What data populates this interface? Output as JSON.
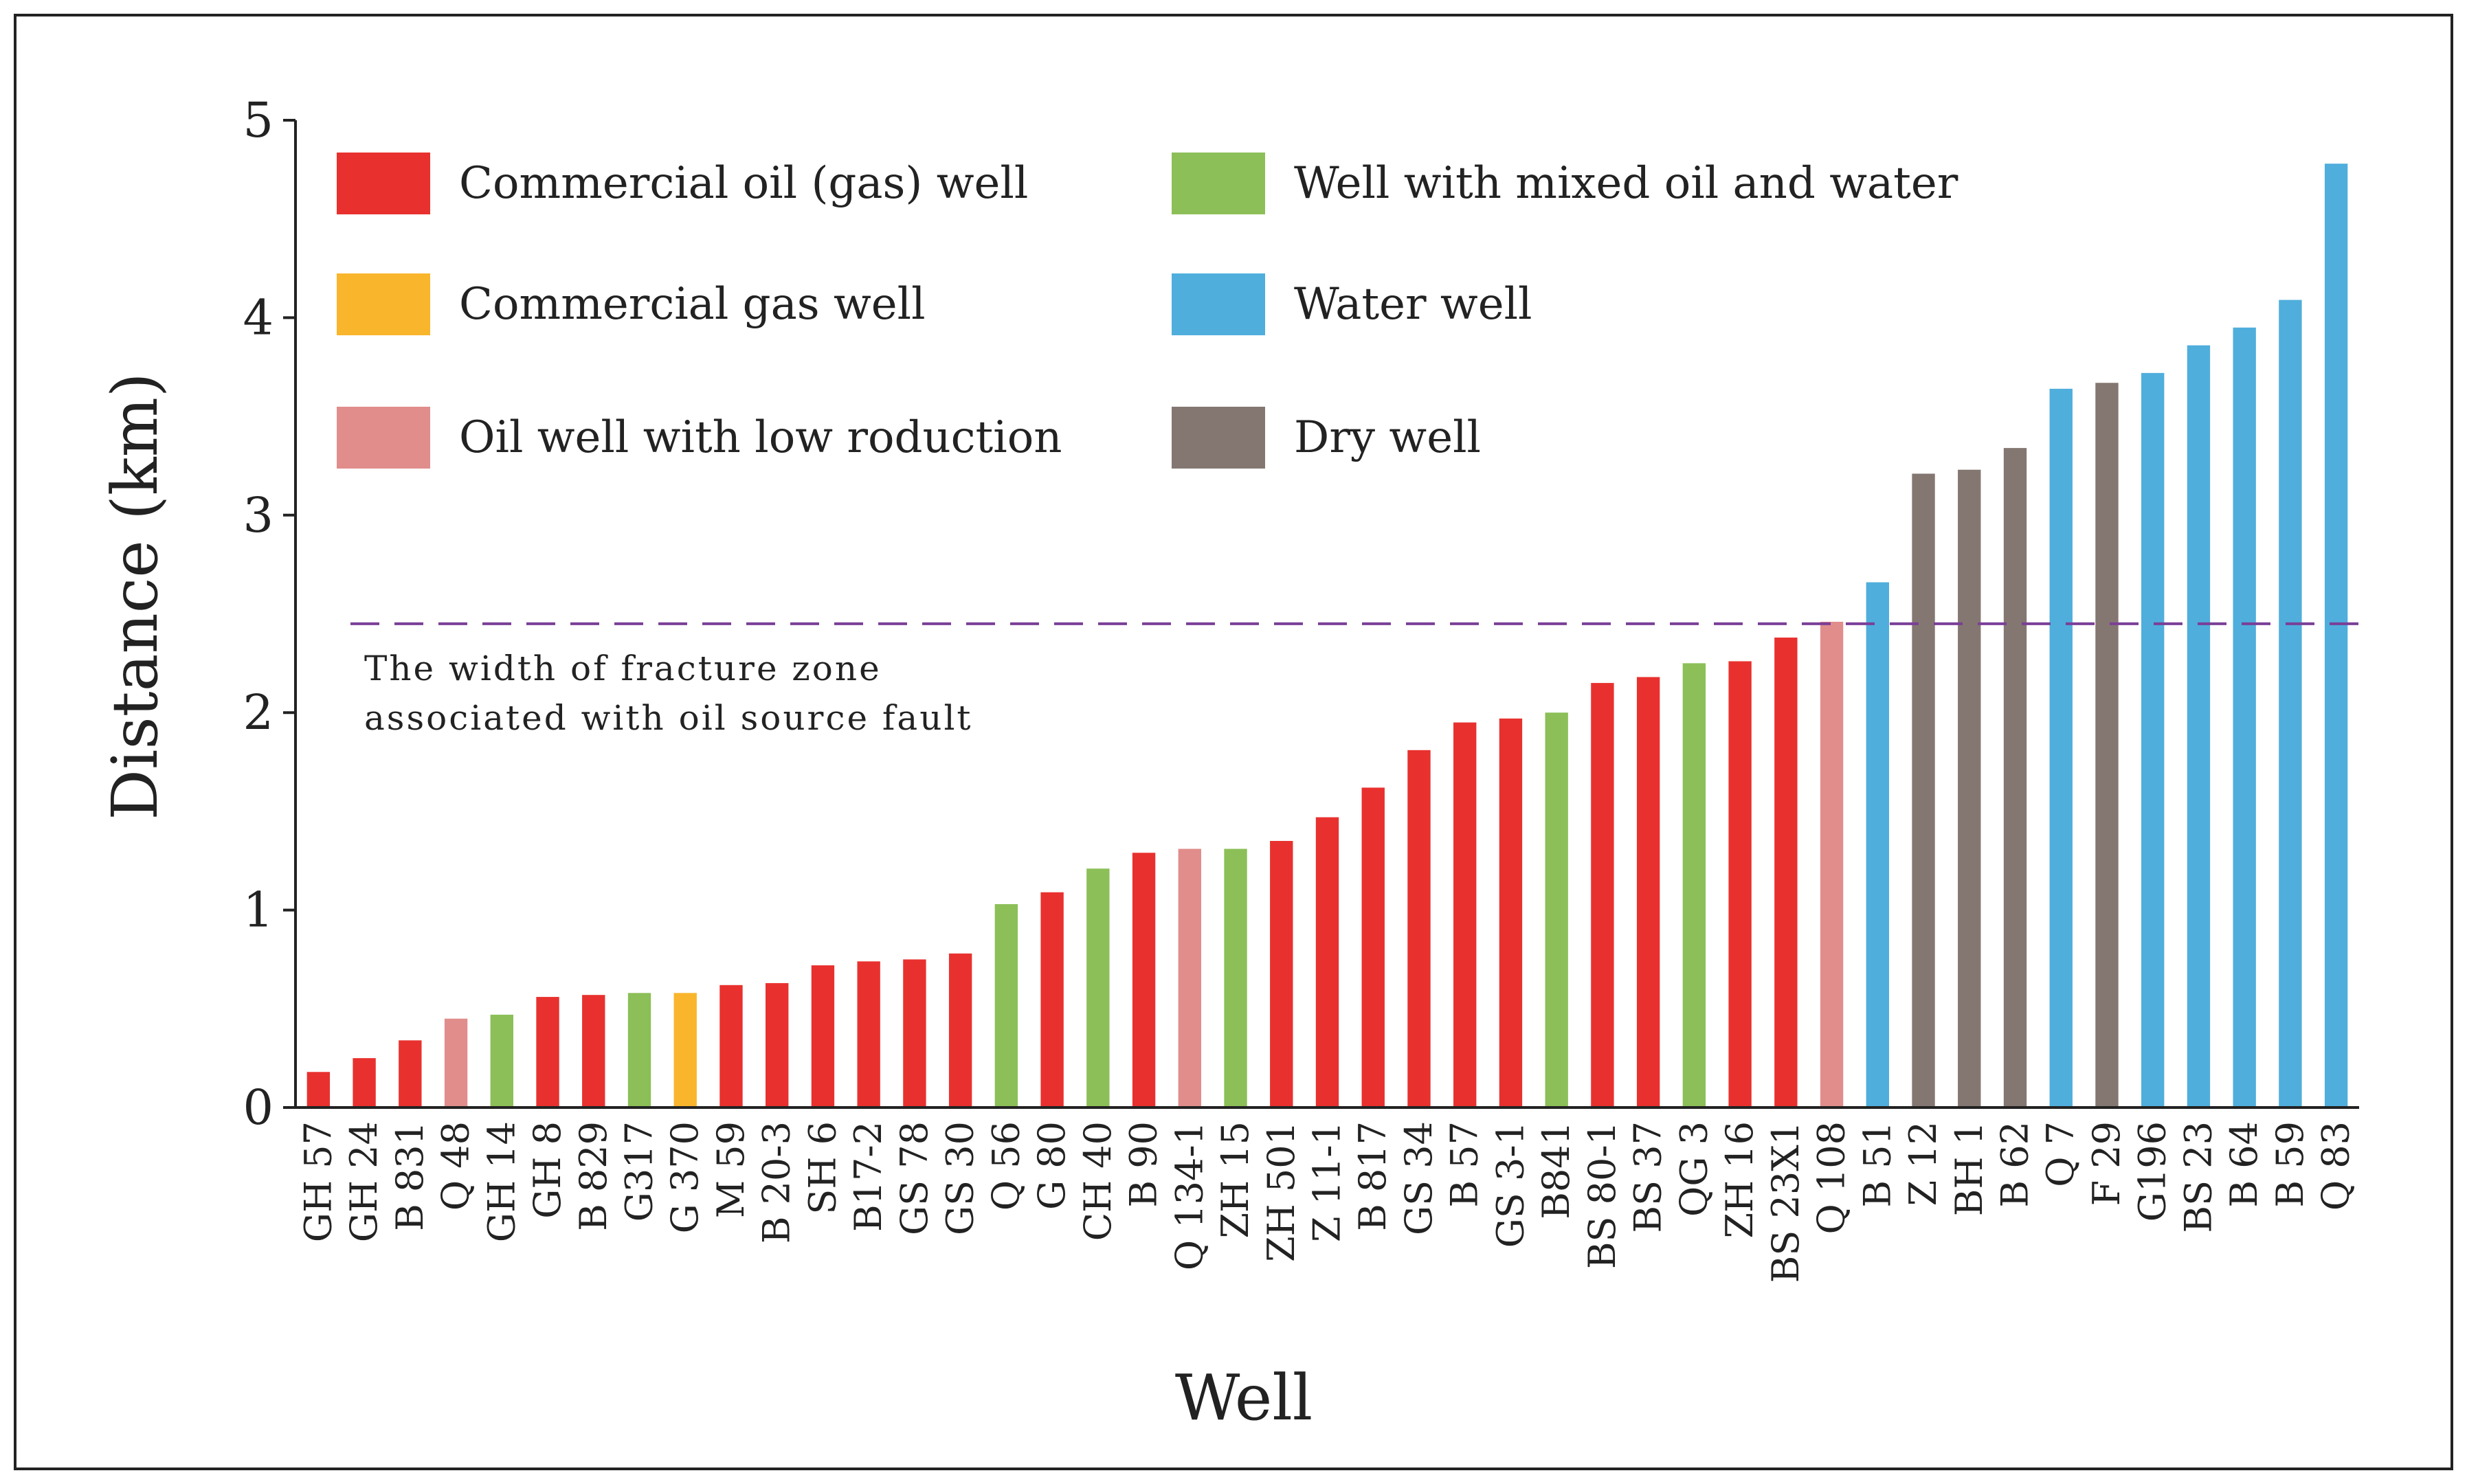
{
  "chart_data": {
    "type": "bar",
    "xlabel": "Well",
    "ylabel": "Distance (km)",
    "ylim": [
      0,
      5
    ],
    "yticks": [
      0,
      1,
      2,
      3,
      4,
      5
    ],
    "grid": false,
    "legend_position": "top-left",
    "categories": [
      "GH 57",
      "GH 24",
      "B 831",
      "Q 48",
      "GH 14",
      "GH 8",
      "B 829",
      "G317",
      "G 370",
      "M 59",
      "B 20-3",
      "SH 6",
      "B17-2",
      "GS 78",
      "GS 30",
      "Q 56",
      "G 80",
      "CH 40",
      "B 90",
      "Q 134-1",
      "ZH 15",
      "ZH 501",
      "Z 11-1",
      "B 817",
      "GS 34",
      "B 57",
      "GS 3-1",
      "B841",
      "BS 80-1",
      "BS 37",
      "QG 3",
      "ZH 16",
      "BS 23X1",
      "Q 108",
      "B 51",
      "Z 12",
      "BH 1",
      "B 62",
      "Q 7",
      "F 29",
      "G196",
      "BS 23",
      "B 64",
      "B 59",
      "Q 83"
    ],
    "values": [
      0.18,
      0.25,
      0.34,
      0.45,
      0.47,
      0.56,
      0.57,
      0.58,
      0.58,
      0.62,
      0.63,
      0.72,
      0.74,
      0.75,
      0.78,
      1.03,
      1.09,
      1.21,
      1.29,
      1.31,
      1.31,
      1.35,
      1.47,
      1.62,
      1.81,
      1.95,
      1.97,
      2.0,
      2.15,
      2.18,
      2.25,
      2.26,
      2.38,
      2.46,
      2.66,
      3.21,
      3.23,
      3.34,
      3.64,
      3.67,
      3.72,
      3.86,
      3.95,
      4.09,
      4.78
    ],
    "well_types": [
      "commercial_oil_gas",
      "commercial_oil_gas",
      "commercial_oil_gas",
      "low_production",
      "mixed",
      "commercial_oil_gas",
      "commercial_oil_gas",
      "mixed",
      "commercial_gas",
      "commercial_oil_gas",
      "commercial_oil_gas",
      "commercial_oil_gas",
      "commercial_oil_gas",
      "commercial_oil_gas",
      "commercial_oil_gas",
      "mixed",
      "commercial_oil_gas",
      "mixed",
      "commercial_oil_gas",
      "low_production",
      "mixed",
      "commercial_oil_gas",
      "commercial_oil_gas",
      "commercial_oil_gas",
      "commercial_oil_gas",
      "commercial_oil_gas",
      "commercial_oil_gas",
      "mixed",
      "commercial_oil_gas",
      "commercial_oil_gas",
      "mixed",
      "commercial_oil_gas",
      "commercial_oil_gas",
      "low_production",
      "water",
      "dry",
      "dry",
      "dry",
      "water",
      "dry",
      "water",
      "water",
      "water",
      "water",
      "water"
    ],
    "legend": [
      {
        "key": "commercial_oil_gas",
        "label": "Commercial oil (gas) well",
        "color": "#E8312E"
      },
      {
        "key": "commercial_gas",
        "label": "Commercial gas well",
        "color": "#F9B52C"
      },
      {
        "key": "low_production",
        "label": "Oil well with low roduction",
        "color": "#E08D8C"
      },
      {
        "key": "mixed",
        "label": "Well with mixed oil and water",
        "color": "#8CBF58"
      },
      {
        "key": "water",
        "label": "Water well",
        "color": "#4FAEDC"
      },
      {
        "key": "dry",
        "label": "Dry well",
        "color": "#847772"
      }
    ],
    "reference_line": {
      "value": 2.45,
      "style": "dashed",
      "color": "#7B3F98",
      "label_lines": [
        "The width of fracture zone",
        "associated with oil source fault"
      ]
    }
  }
}
